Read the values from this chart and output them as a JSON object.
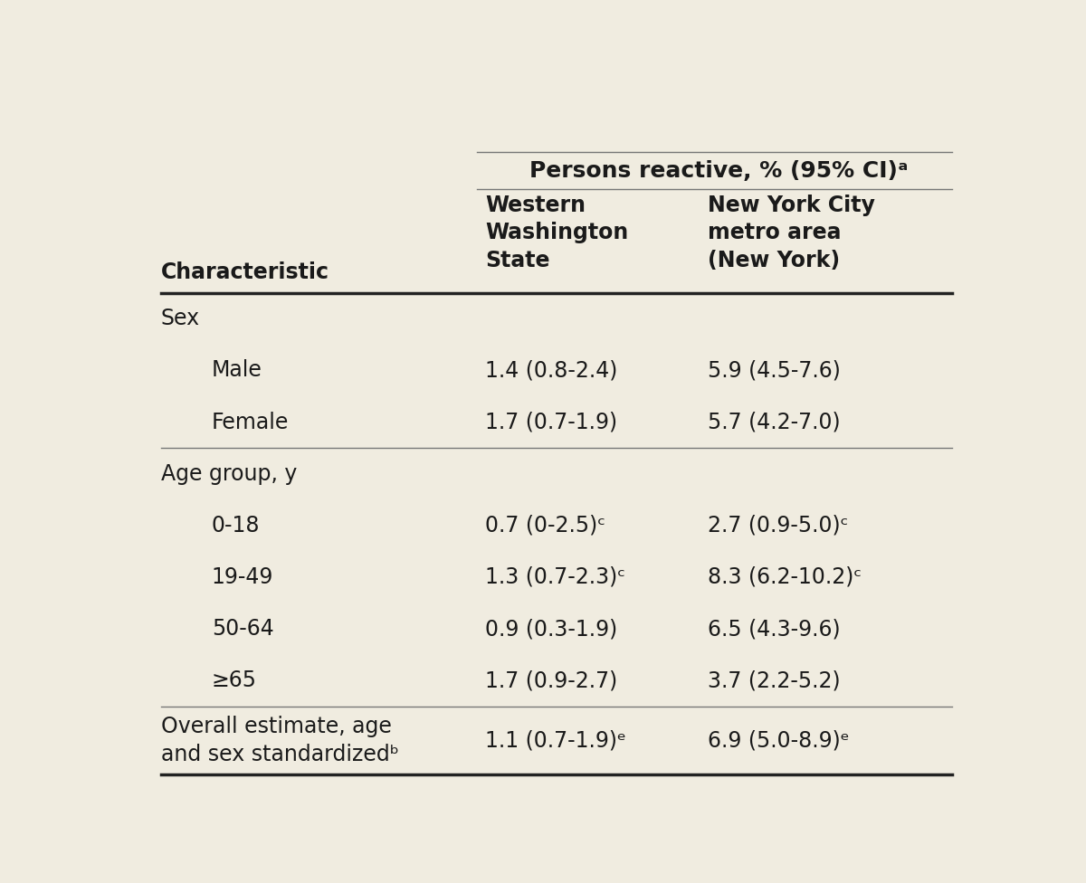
{
  "background_color": "#f0ece0",
  "title_col1": "Persons reactive, % (95% CI)ᵃ",
  "col_header_char": "Characteristic",
  "col_header_ww": "Western\nWashington\nState",
  "col_header_nyc": "New York City\nmetro area\n(New York)",
  "rows": [
    {
      "label": "Sex",
      "ww": "",
      "nyc": "",
      "indent": 0,
      "separator_before": false
    },
    {
      "label": "Male",
      "ww": "1.4 (0.8-2.4)",
      "nyc": "5.9 (4.5-7.6)",
      "indent": 1,
      "separator_before": false
    },
    {
      "label": "Female",
      "ww": "1.7 (0.7-1.9)",
      "nyc": "5.7 (4.2-7.0)",
      "indent": 1,
      "separator_before": false
    },
    {
      "label": "Age group, y",
      "ww": "",
      "nyc": "",
      "indent": 0,
      "separator_before": true
    },
    {
      "label": "0-18",
      "ww": "0.7 (0-2.5)ᶜ",
      "nyc": "2.7 (0.9-5.0)ᶜ",
      "indent": 1,
      "separator_before": false
    },
    {
      "label": "19-49",
      "ww": "1.3 (0.7-2.3)ᶜ",
      "nyc": "8.3 (6.2-10.2)ᶜ",
      "indent": 1,
      "separator_before": false
    },
    {
      "label": "50-64",
      "ww": "0.9 (0.3-1.9)",
      "nyc": "6.5 (4.3-9.6)",
      "indent": 1,
      "separator_before": false
    },
    {
      "≥label": "≥65",
      "label": "≥65",
      "ww": "1.7 (0.9-2.7)",
      "nyc": "3.7 (2.2-5.2)",
      "indent": 1,
      "separator_before": false
    },
    {
      "label": "Overall estimate, age\nand sex standardizedᵇ",
      "ww": "1.1 (0.7-1.9)ᵉ",
      "nyc": "6.9 (5.0-8.9)ᵉ",
      "indent": 0,
      "separator_before": true
    }
  ],
  "text_color": "#1a1a1a",
  "line_color": "#777777",
  "thick_line_color": "#222222",
  "font_size_title": 18,
  "font_size_body": 17,
  "indent_amount": 0.06
}
